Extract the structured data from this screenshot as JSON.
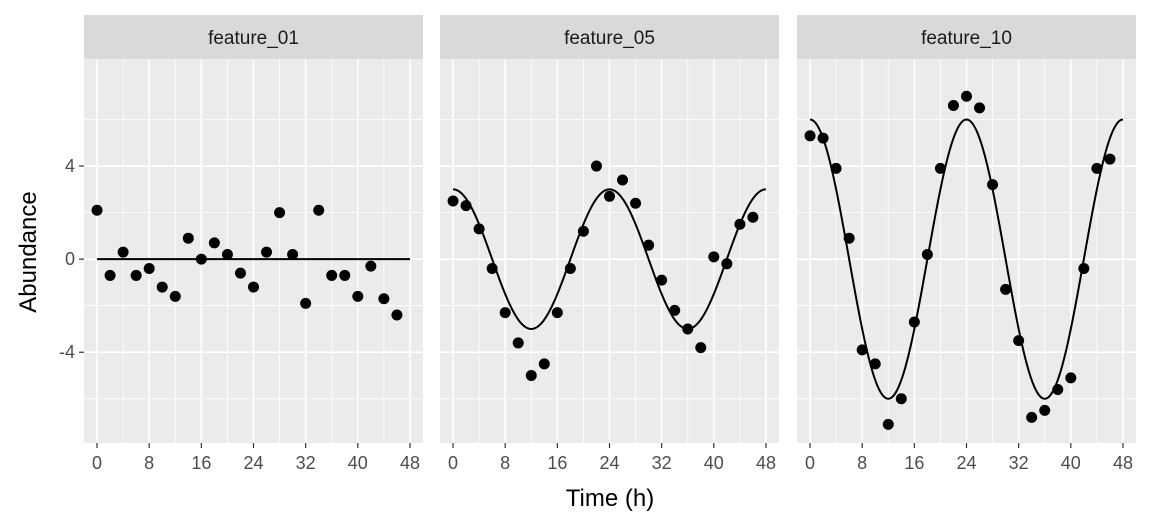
{
  "chart_data": {
    "type": "scatter",
    "xlabel": "Time (h)",
    "ylabel": "Abundance",
    "xlim": [
      -2,
      50
    ],
    "ylim": [
      -7.9,
      8.6
    ],
    "x_ticks": [
      0,
      8,
      16,
      24,
      32,
      40,
      48
    ],
    "y_ticks": [
      4,
      0,
      -4
    ],
    "grid": true,
    "panels": [
      {
        "name": "feature_01",
        "fit": {
          "amplitude": 0,
          "period": 24,
          "peak": 0,
          "offset": 0
        },
        "x": [
          0,
          2,
          4,
          6,
          8,
          10,
          12,
          14,
          16,
          18,
          20,
          22,
          24,
          26,
          28,
          30,
          32,
          34,
          36,
          38,
          40,
          42,
          44,
          46
        ],
        "y": [
          2.1,
          -0.7,
          0.3,
          -0.7,
          -0.4,
          -1.2,
          -1.6,
          0.9,
          0.0,
          0.7,
          0.2,
          -0.6,
          -1.2,
          0.3,
          2.0,
          0.2,
          -1.9,
          2.1,
          -0.7,
          -0.7,
          -1.6,
          -0.3,
          -1.7,
          -2.4
        ]
      },
      {
        "name": "feature_05",
        "fit": {
          "amplitude": 3,
          "period": 24,
          "peak": 0,
          "offset": 0
        },
        "x": [
          0,
          2,
          4,
          6,
          8,
          10,
          12,
          14,
          16,
          18,
          20,
          22,
          24,
          26,
          28,
          30,
          32,
          34,
          36,
          38,
          40,
          42,
          44,
          46
        ],
        "y": [
          2.5,
          2.3,
          1.3,
          -0.4,
          -2.3,
          -3.6,
          -5.0,
          -4.5,
          -2.3,
          -0.4,
          1.2,
          4.0,
          2.7,
          3.4,
          2.4,
          0.6,
          -0.9,
          -2.2,
          -3.0,
          -3.8,
          0.1,
          -0.2,
          1.5,
          1.8
        ]
      },
      {
        "name": "feature_10",
        "fit": {
          "amplitude": 6,
          "period": 24,
          "peak": 0,
          "offset": 0
        },
        "x": [
          0,
          2,
          4,
          6,
          8,
          10,
          12,
          14,
          16,
          18,
          20,
          22,
          24,
          26,
          28,
          30,
          32,
          34,
          36,
          38,
          40,
          42,
          44,
          46
        ],
        "y": [
          5.3,
          5.2,
          3.9,
          0.9,
          -3.9,
          -4.5,
          -7.1,
          -6.0,
          -2.7,
          0.2,
          3.9,
          6.6,
          7.0,
          6.5,
          3.2,
          -1.3,
          -3.5,
          -6.8,
          -6.5,
          -5.6,
          -5.1,
          -0.4,
          3.9,
          4.3
        ]
      }
    ]
  }
}
